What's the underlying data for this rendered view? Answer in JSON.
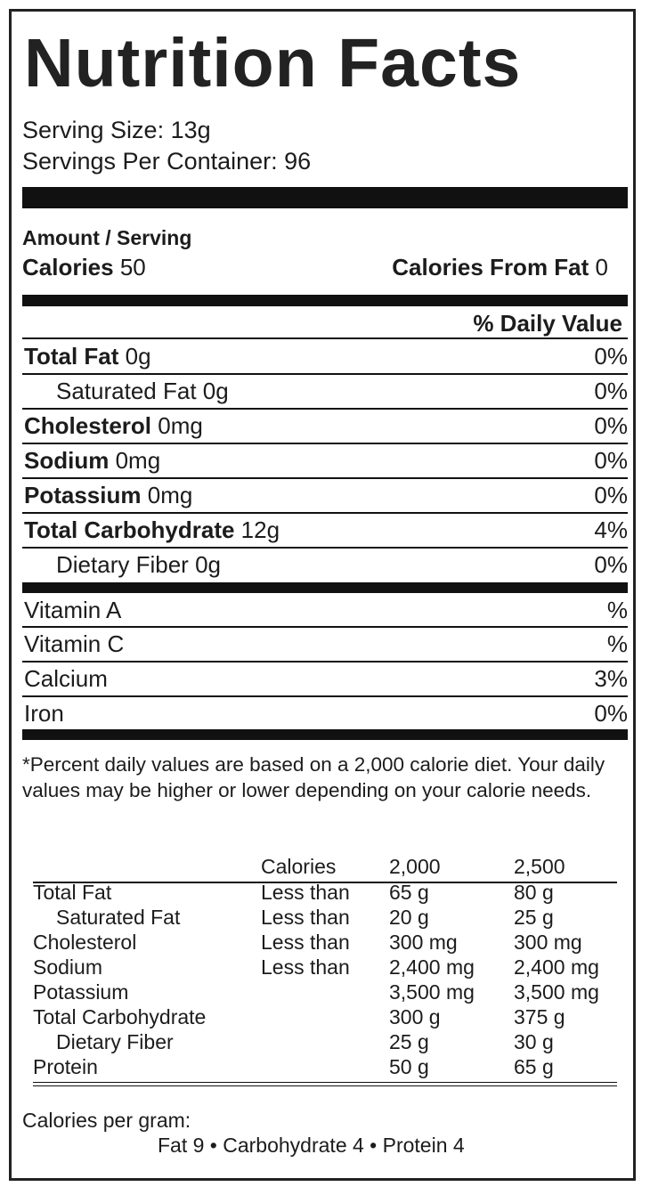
{
  "title": "Nutrition Facts",
  "serving_size": "Serving Size: 13g",
  "servings_per_container": "Servings Per Container: 96",
  "amount_per_serving": "Amount / Serving",
  "calories_label": "Calories",
  "calories_value": "50",
  "calories_fat_label": "Calories From Fat",
  "calories_fat_value": "0",
  "daily_value_header": "% Daily Value",
  "nutrients": [
    {
      "name": "Total Fat",
      "amount": "0g",
      "dv": "0%"
    },
    {
      "name": "Saturated Fat",
      "amount": "0g",
      "dv": "0%"
    },
    {
      "name": "Cholesterol",
      "amount": "0mg",
      "dv": "0%"
    },
    {
      "name": "Sodium",
      "amount": "0mg",
      "dv": "0%"
    },
    {
      "name": "Potassium",
      "amount": "0mg",
      "dv": "0%"
    },
    {
      "name": "Total Carbohydrate",
      "amount": "12g",
      "dv": "4%"
    },
    {
      "name": "Dietary Fiber",
      "amount": "0g",
      "dv": "0%"
    }
  ],
  "vitamins": [
    {
      "name": "Vitamin A",
      "dv": "%"
    },
    {
      "name": "Vitamin C",
      "dv": "%"
    },
    {
      "name": "Calcium",
      "dv": "3%"
    },
    {
      "name": "Iron",
      "dv": "0%"
    }
  ],
  "footnote": "*Percent daily values are based on a 2,000 calorie diet. Your daily values may be higher or lower depending on your calorie needs.",
  "reference_table": {
    "header": [
      "Calories",
      "2,000",
      "2,500"
    ],
    "rows": [
      {
        "name": "Total Fat",
        "qual": "Less than",
        "v2000": "65 g",
        "v2500": "80 g"
      },
      {
        "name": "Saturated Fat",
        "qual": "Less than",
        "v2000": "20 g",
        "v2500": "25 g"
      },
      {
        "name": "Cholesterol",
        "qual": "Less than",
        "v2000": "300 mg",
        "v2500": "300 mg"
      },
      {
        "name": "Sodium",
        "qual": "Less than",
        "v2000": "2,400 mg",
        "v2500": "2,400 mg"
      },
      {
        "name": "Potassium",
        "qual": "",
        "v2000": "3,500 mg",
        "v2500": "3,500 mg"
      },
      {
        "name": "Total Carbohydrate",
        "qual": "",
        "v2000": "300 g",
        "v2500": "375 g"
      },
      {
        "name": "Dietary Fiber",
        "qual": "",
        "v2000": "25 g",
        "v2500": "30 g"
      },
      {
        "name": "Protein",
        "qual": "",
        "v2000": "50 g",
        "v2500": "65 g"
      }
    ]
  },
  "calories_per_gram_label": "Calories per gram:",
  "calories_per_gram_values": "Fat 9 • Carbohydrate 4 • Protein 4"
}
